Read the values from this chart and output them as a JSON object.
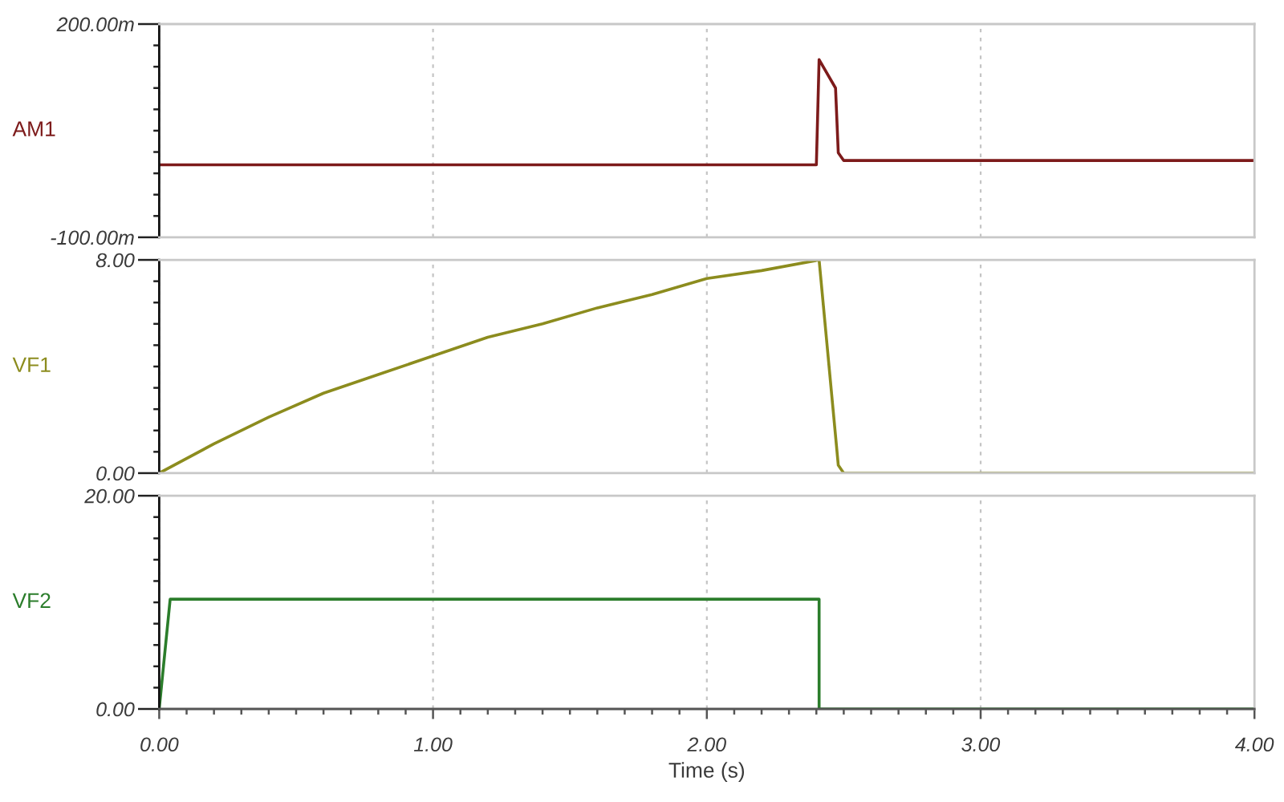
{
  "chart_data": [
    {
      "type": "line",
      "ylabel": "AM1",
      "xlim": [
        0,
        4
      ],
      "xticks": [
        0,
        1,
        2,
        3,
        4
      ],
      "ylim": [
        -100,
        200
      ],
      "yticks": [
        {
          "value": 200,
          "label": "200.00m"
        },
        {
          "value": 170,
          "label": null
        },
        {
          "value": 140,
          "label": null
        },
        {
          "value": 110,
          "label": null
        },
        {
          "value": 80,
          "label": null
        },
        {
          "value": 50,
          "label": null
        },
        {
          "value": 20,
          "label": null
        },
        {
          "value": -10,
          "label": null
        },
        {
          "value": -40,
          "label": null
        },
        {
          "value": -70,
          "label": null
        },
        {
          "value": -100,
          "label": "-100.00m"
        }
      ],
      "grid": "x",
      "tick_labels": "y",
      "series": [
        {
          "color": "#7d1b1b",
          "x": [
            0,
            2.4,
            2.41,
            2.47,
            2.48,
            2.5,
            4.0
          ],
          "values": [
            2,
            2,
            150,
            110,
            19,
            8,
            8
          ]
        }
      ]
    },
    {
      "type": "line",
      "ylabel": "VF1",
      "xlim": [
        0,
        4
      ],
      "xticks": [
        0,
        1,
        2,
        3,
        4
      ],
      "ylim": [
        0,
        8
      ],
      "yticks": [
        {
          "value": 8,
          "label": "8.00"
        },
        {
          "value": 7.2,
          "label": null
        },
        {
          "value": 6.4,
          "label": null
        },
        {
          "value": 5.6,
          "label": null
        },
        {
          "value": 4.8,
          "label": null
        },
        {
          "value": 4,
          "label": null
        },
        {
          "value": 3.2,
          "label": null
        },
        {
          "value": 2.4,
          "label": null
        },
        {
          "value": 1.6,
          "label": null
        },
        {
          "value": 0.8,
          "label": null
        },
        {
          "value": 0,
          "label": "0.00"
        }
      ],
      "grid": "x",
      "tick_labels": "y",
      "series": [
        {
          "color": "#8c8c1e",
          "x": [
            0,
            0.2,
            0.4,
            0.6,
            0.8,
            1.0,
            1.2,
            1.4,
            1.6,
            1.8,
            2.0,
            2.2,
            2.41,
            2.48,
            2.5,
            4.0
          ],
          "values": [
            0,
            1.1,
            2.1,
            3.0,
            3.7,
            4.4,
            5.1,
            5.6,
            6.2,
            6.7,
            7.3,
            7.6,
            8.0,
            0.3,
            0,
            0
          ]
        }
      ]
    },
    {
      "type": "line",
      "ylabel": "VF2",
      "xlabel": "Time (s)",
      "xlim": [
        0,
        4
      ],
      "xticks": [
        {
          "value": 0,
          "label": "0.00"
        },
        {
          "value": 0.1,
          "label": null
        },
        {
          "value": 0.2,
          "label": null
        },
        {
          "value": 0.3,
          "label": null
        },
        {
          "value": 0.4,
          "label": null
        },
        {
          "value": 0.5,
          "label": null
        },
        {
          "value": 0.6,
          "label": null
        },
        {
          "value": 0.7,
          "label": null
        },
        {
          "value": 0.8,
          "label": null
        },
        {
          "value": 0.9,
          "label": null
        },
        {
          "value": 1,
          "label": "1.00"
        },
        {
          "value": 1.1,
          "label": null
        },
        {
          "value": 1.2,
          "label": null
        },
        {
          "value": 1.3,
          "label": null
        },
        {
          "value": 1.4,
          "label": null
        },
        {
          "value": 1.5,
          "label": null
        },
        {
          "value": 1.6,
          "label": null
        },
        {
          "value": 1.7,
          "label": null
        },
        {
          "value": 1.8,
          "label": null
        },
        {
          "value": 1.9,
          "label": null
        },
        {
          "value": 2,
          "label": "2.00"
        },
        {
          "value": 2.1,
          "label": null
        },
        {
          "value": 2.2,
          "label": null
        },
        {
          "value": 2.3,
          "label": null
        },
        {
          "value": 2.4,
          "label": null
        },
        {
          "value": 2.5,
          "label": null
        },
        {
          "value": 2.6,
          "label": null
        },
        {
          "value": 2.7,
          "label": null
        },
        {
          "value": 2.8,
          "label": null
        },
        {
          "value": 2.9,
          "label": null
        },
        {
          "value": 3,
          "label": "3.00"
        },
        {
          "value": 3.1,
          "label": null
        },
        {
          "value": 3.2,
          "label": null
        },
        {
          "value": 3.3,
          "label": null
        },
        {
          "value": 3.4,
          "label": null
        },
        {
          "value": 3.5,
          "label": null
        },
        {
          "value": 3.6,
          "label": null
        },
        {
          "value": 3.7,
          "label": null
        },
        {
          "value": 3.8,
          "label": null
        },
        {
          "value": 3.9,
          "label": null
        },
        {
          "value": 4,
          "label": "4.00"
        }
      ],
      "ylim": [
        0,
        20
      ],
      "yticks": [
        {
          "value": 20,
          "label": "20.00"
        },
        {
          "value": 18,
          "label": null
        },
        {
          "value": 16,
          "label": null
        },
        {
          "value": 14,
          "label": null
        },
        {
          "value": 12,
          "label": null
        },
        {
          "value": 10,
          "label": null
        },
        {
          "value": 8,
          "label": null
        },
        {
          "value": 6,
          "label": null
        },
        {
          "value": 4,
          "label": null
        },
        {
          "value": 2,
          "label": null
        },
        {
          "value": 0,
          "label": "0.00"
        }
      ],
      "grid": "x",
      "series": [
        {
          "color": "#2b7d2b",
          "x": [
            0,
            0.04,
            2.41,
            2.41,
            4.0
          ],
          "values": [
            0,
            10.3,
            10.3,
            0,
            0
          ]
        }
      ]
    }
  ]
}
